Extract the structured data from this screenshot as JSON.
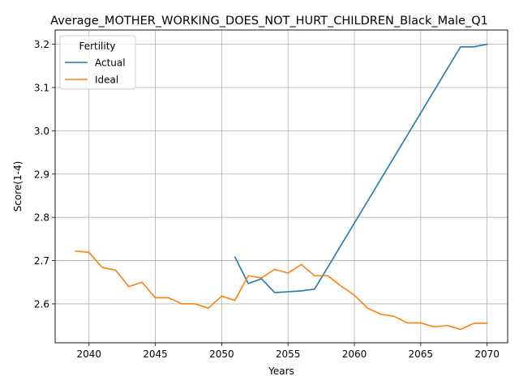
{
  "chart_data": {
    "type": "line",
    "title": "Average_MOTHER_WORKING_DOES_NOT_HURT_CHILDREN_Black_Male_Q1",
    "xlabel": "Years",
    "ylabel": "Score(1-4)",
    "xlim": [
      2037.45,
      2071.55
    ],
    "ylim": [
      2.51,
      3.233
    ],
    "xticks": [
      2040,
      2045,
      2050,
      2055,
      2060,
      2065,
      2070
    ],
    "yticks": [
      2.6,
      2.7,
      2.8,
      2.9,
      3.0,
      3.1,
      3.2
    ],
    "xtick_labels": [
      "2040",
      "2045",
      "2050",
      "2055",
      "2060",
      "2065",
      "2070"
    ],
    "ytick_labels": [
      "2.6",
      "2.7",
      "2.8",
      "2.9",
      "3.0",
      "3.1",
      "3.2"
    ],
    "grid": true,
    "legend": {
      "title": "Fertility",
      "placement": "upper-left"
    },
    "series": [
      {
        "name": "Actual",
        "color": "#1f77b4",
        "x": [
          2051,
          2052,
          2053,
          2054,
          2055,
          2056,
          2057,
          2068,
          2069,
          2070
        ],
        "y": [
          2.708,
          2.647,
          2.658,
          2.626,
          2.628,
          2.63,
          2.634,
          3.194,
          3.194,
          3.2
        ]
      },
      {
        "name": "Ideal",
        "color": "#ff7f0e",
        "x": [
          2039,
          2040,
          2041,
          2042,
          2043,
          2044,
          2045,
          2046,
          2047,
          2048,
          2049,
          2050,
          2051,
          2052,
          2053,
          2054,
          2055,
          2056,
          2057,
          2058,
          2059,
          2060,
          2061,
          2062,
          2063,
          2064,
          2065,
          2066,
          2067,
          2068,
          2069,
          2070
        ],
        "y": [
          2.722,
          2.719,
          2.684,
          2.678,
          2.64,
          2.65,
          2.614,
          2.614,
          2.6,
          2.6,
          2.59,
          2.618,
          2.608,
          2.665,
          2.66,
          2.68,
          2.671,
          2.691,
          2.665,
          2.665,
          2.641,
          2.62,
          2.59,
          2.576,
          2.571,
          2.556,
          2.556,
          2.547,
          2.55,
          2.541,
          2.555,
          2.555
        ]
      }
    ]
  }
}
